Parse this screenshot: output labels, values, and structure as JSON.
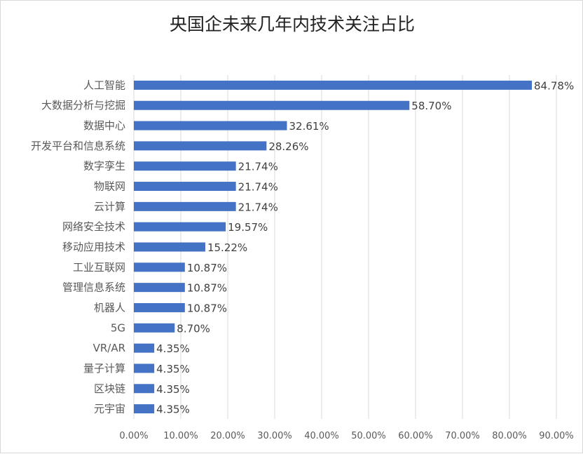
{
  "chart_data": {
    "type": "bar",
    "orientation": "horizontal",
    "title": "央国企未来几年内技术关注占比",
    "categories": [
      "人工智能",
      "大数据分析与挖掘",
      "数据中心",
      "开发平台和信息系统",
      "数字孪生",
      "物联网",
      "云计算",
      "网络安全技术",
      "移动应用技术",
      "工业互联网",
      "管理信息系统",
      "机器人",
      "5G",
      "VR/AR",
      "量子计算",
      "区块链",
      "元宇宙"
    ],
    "values": [
      84.78,
      58.7,
      32.61,
      28.26,
      21.74,
      21.74,
      21.74,
      19.57,
      15.22,
      10.87,
      10.87,
      10.87,
      8.7,
      4.35,
      4.35,
      4.35,
      4.35
    ],
    "data_labels": [
      "84.78%",
      "58.70%",
      "32.61%",
      "28.26%",
      "21.74%",
      "21.74%",
      "21.74%",
      "19.57%",
      "15.22%",
      "10.87%",
      "10.87%",
      "10.87%",
      "8.70%",
      "4.35%",
      "4.35%",
      "4.35%",
      "4.35%"
    ],
    "xticks": [
      "0.00%",
      "10.00%",
      "20.00%",
      "30.00%",
      "40.00%",
      "50.00%",
      "60.00%",
      "70.00%",
      "80.00%",
      "90.00%"
    ],
    "xlim": [
      0,
      90
    ],
    "grid": true,
    "legend": "none",
    "bar_color": "#4472c4"
  }
}
